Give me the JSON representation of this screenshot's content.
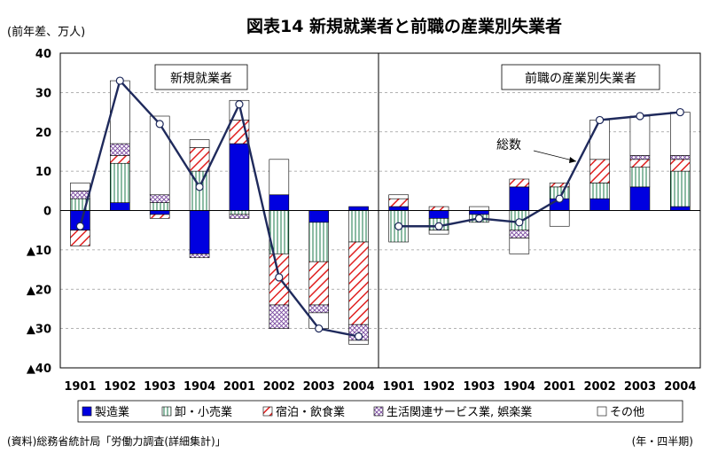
{
  "chart_data": {
    "type": "bar",
    "title": "図表14 新規就業者と前職の産業別失業者",
    "ylabel": "(前年差、万人)",
    "xlabel_note": "(年・四半期)",
    "source": "(資料)総務省統計局「労働力調査(詳細集計)」",
    "ylim": [
      -40,
      40
    ],
    "yticks": [
      {
        "value": 40,
        "label": "40"
      },
      {
        "value": 30,
        "label": "30"
      },
      {
        "value": 20,
        "label": "20"
      },
      {
        "value": 10,
        "label": "10"
      },
      {
        "value": 0,
        "label": "0"
      },
      {
        "value": -10,
        "label": "▲10"
      },
      {
        "value": -20,
        "label": "▲20"
      },
      {
        "value": -30,
        "label": "▲30"
      },
      {
        "value": -40,
        "label": "▲40"
      }
    ],
    "categories": [
      "1901",
      "1902",
      "1903",
      "1904",
      "2001",
      "2002",
      "2003",
      "2004"
    ],
    "stack_series": [
      {
        "name": "製造業",
        "color": "#0000e0",
        "pattern": "solid"
      },
      {
        "name": "卸・小売業",
        "color": "#1a7a4a",
        "pattern": "vlines"
      },
      {
        "name": "宿泊・飲食業",
        "color": "#e02020",
        "pattern": "diag"
      },
      {
        "name": "生活関連サービス業, 娯楽業",
        "color": "#7a4aa0",
        "pattern": "cross"
      },
      {
        "name": "その他",
        "color": "#ffffff",
        "pattern": "plain"
      }
    ],
    "line_series_name": "総数",
    "panels": [
      {
        "label": "新規就業者",
        "stacks": [
          [
            -5,
            3,
            -4,
            2,
            2
          ],
          [
            2,
            10,
            2,
            3,
            16
          ],
          [
            -1,
            2,
            -1,
            2,
            20
          ],
          [
            -11,
            10,
            6,
            -1,
            2
          ],
          [
            17,
            -1,
            6,
            -1,
            5
          ],
          [
            4,
            -11,
            -13,
            -6,
            9
          ],
          [
            -3,
            -10,
            -11,
            -2,
            -4
          ],
          [
            1,
            -8,
            -21,
            -4,
            -1
          ]
        ],
        "totals": [
          -4,
          33,
          22,
          6,
          27,
          -17,
          -30,
          -32
        ]
      },
      {
        "label": "前職の産業別失業者",
        "stacks": [
          [
            1,
            -8,
            2,
            0,
            1
          ],
          [
            -2,
            -3,
            1,
            0,
            -1
          ],
          [
            -1,
            -2,
            0,
            0,
            1
          ],
          [
            6,
            -5,
            2,
            -2,
            -4
          ],
          [
            3,
            3,
            1,
            0,
            -4
          ],
          [
            3,
            4,
            6,
            0,
            10
          ],
          [
            6,
            5,
            2,
            1,
            10
          ],
          [
            1,
            9,
            3,
            1,
            11
          ]
        ],
        "totals": [
          -4,
          -4,
          -2,
          -3,
          3,
          23,
          24,
          25
        ]
      }
    ],
    "annotation": "総数"
  }
}
